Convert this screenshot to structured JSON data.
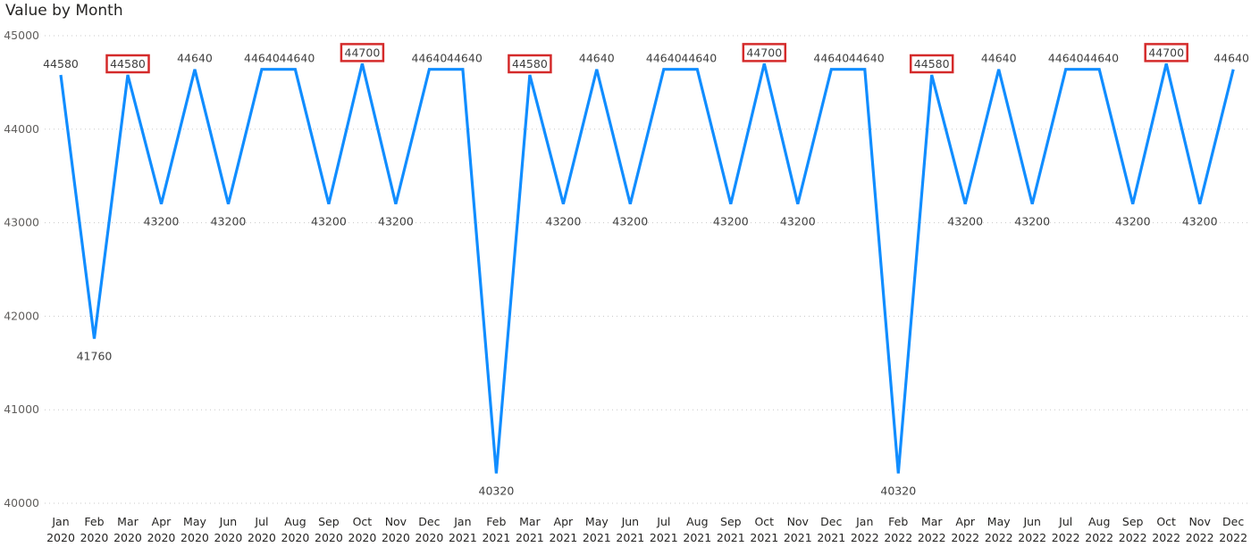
{
  "chart_data": {
    "type": "line",
    "title": "Value by Month",
    "xlabel": "",
    "ylabel": "",
    "ylim": [
      40000,
      45000
    ],
    "yticks": [
      "40000",
      "41000",
      "42000",
      "43000",
      "44000",
      "45000"
    ],
    "grid": true,
    "legend": "none",
    "categories": [
      [
        "Jan",
        "2020"
      ],
      [
        "Feb",
        "2020"
      ],
      [
        "Mar",
        "2020"
      ],
      [
        "Apr",
        "2020"
      ],
      [
        "May",
        "2020"
      ],
      [
        "Jun",
        "2020"
      ],
      [
        "Jul",
        "2020"
      ],
      [
        "Aug",
        "2020"
      ],
      [
        "Sep",
        "2020"
      ],
      [
        "Oct",
        "2020"
      ],
      [
        "Nov",
        "2020"
      ],
      [
        "Dec",
        "2020"
      ],
      [
        "Jan",
        "2021"
      ],
      [
        "Feb",
        "2021"
      ],
      [
        "Mar",
        "2021"
      ],
      [
        "Apr",
        "2021"
      ],
      [
        "May",
        "2021"
      ],
      [
        "Jun",
        "2021"
      ],
      [
        "Jul",
        "2021"
      ],
      [
        "Aug",
        "2021"
      ],
      [
        "Sep",
        "2021"
      ],
      [
        "Oct",
        "2021"
      ],
      [
        "Nov",
        "2021"
      ],
      [
        "Dec",
        "2021"
      ],
      [
        "Jan",
        "2022"
      ],
      [
        "Feb",
        "2022"
      ],
      [
        "Mar",
        "2022"
      ],
      [
        "Apr",
        "2022"
      ],
      [
        "May",
        "2022"
      ],
      [
        "Jun",
        "2022"
      ],
      [
        "Jul",
        "2022"
      ],
      [
        "Aug",
        "2022"
      ],
      [
        "Sep",
        "2022"
      ],
      [
        "Oct",
        "2022"
      ],
      [
        "Nov",
        "2022"
      ],
      [
        "Dec",
        "2022"
      ]
    ],
    "series": [
      {
        "values": [
          44580,
          41760,
          44580,
          43200,
          44640,
          43200,
          44640,
          44640,
          43200,
          44700,
          43200,
          44640,
          44640,
          40320,
          44580,
          43200,
          44640,
          43200,
          44640,
          44640,
          43200,
          44700,
          43200,
          44640,
          44640,
          40320,
          44580,
          43200,
          44640,
          43200,
          44640,
          44640,
          43200,
          44700,
          43200,
          44640
        ],
        "data_labels": [
          "44580",
          "41760",
          "44580",
          "43200",
          "44640",
          "43200",
          "44640",
          "44640",
          "43200",
          "44700",
          "43200",
          "44640",
          "44640",
          "40320",
          "44580",
          "43200",
          "44640",
          "43200",
          "44640",
          "44640",
          "43200",
          "44700",
          "43200",
          "44640",
          "44640",
          "40320",
          "44580",
          "43200",
          "44640",
          "43200",
          "44640",
          "44640",
          "43200",
          "44700",
          "43200",
          "44640"
        ],
        "color": "#118dff"
      }
    ],
    "highlighted_labels": [
      2,
      9,
      14,
      21,
      26,
      33
    ],
    "highlight_color": "#d42a2a"
  }
}
